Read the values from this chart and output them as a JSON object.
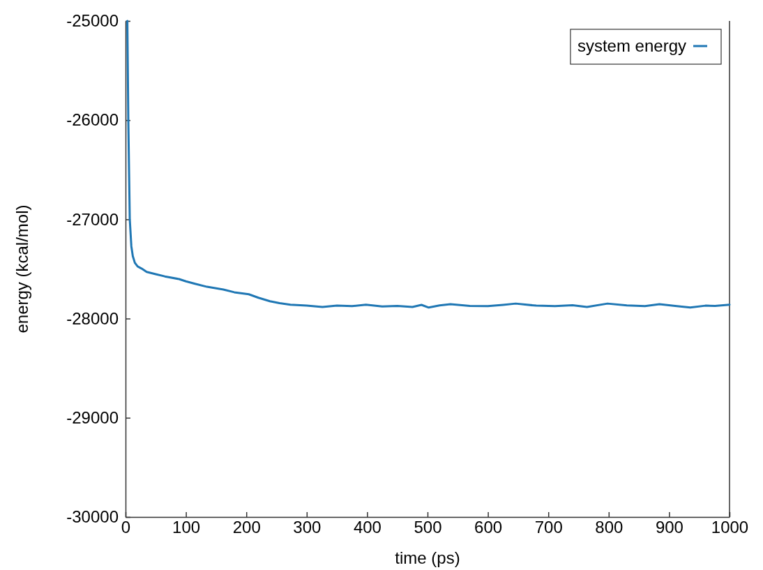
{
  "chart_data": {
    "type": "line",
    "xlabel": "time (ps)",
    "ylabel": "energy (kcal/mol)",
    "xlim": [
      0,
      1000
    ],
    "xticks": [
      0,
      100,
      200,
      300,
      400,
      500,
      600,
      700,
      800,
      900,
      1000
    ],
    "ylim": [
      -30000,
      -25000
    ],
    "yticks": [
      -30000,
      -29000,
      -28000,
      -27000,
      -26000,
      -25000
    ],
    "grid": false,
    "legend": "top right",
    "marker": "none",
    "line_style": "solid",
    "series": [
      {
        "name": "system energy",
        "color": "#1f77b4",
        "x": [
          3,
          4.6,
          7,
          9.6,
          12,
          15.4,
          20,
          26.9,
          35,
          50,
          65,
          88.6,
          100,
          115,
          135,
          162,
          180,
          204,
          220,
          239,
          255,
          273,
          300,
          326,
          350,
          375,
          398,
          425,
          450,
          475,
          490,
          502,
          520,
          538,
          570,
          600,
          625,
          646,
          680,
          711,
          740,
          764,
          798,
          830,
          860,
          884,
          910,
          935,
          960,
          976,
          1000
        ],
        "values": [
          -25000,
          -26000,
          -27000,
          -27271,
          -27370,
          -27438,
          -27475,
          -27497,
          -27530,
          -27553,
          -27575,
          -27602,
          -27625,
          -27649,
          -27680,
          -27707,
          -27735,
          -27755,
          -27790,
          -27825,
          -27845,
          -27860,
          -27870,
          -27883,
          -27870,
          -27875,
          -27860,
          -27878,
          -27872,
          -27883,
          -27862,
          -27889,
          -27868,
          -27855,
          -27872,
          -27875,
          -27862,
          -27849,
          -27870,
          -27875,
          -27866,
          -27883,
          -27849,
          -27868,
          -27875,
          -27855,
          -27872,
          -27889,
          -27870,
          -27872,
          -27860
        ]
      }
    ]
  }
}
